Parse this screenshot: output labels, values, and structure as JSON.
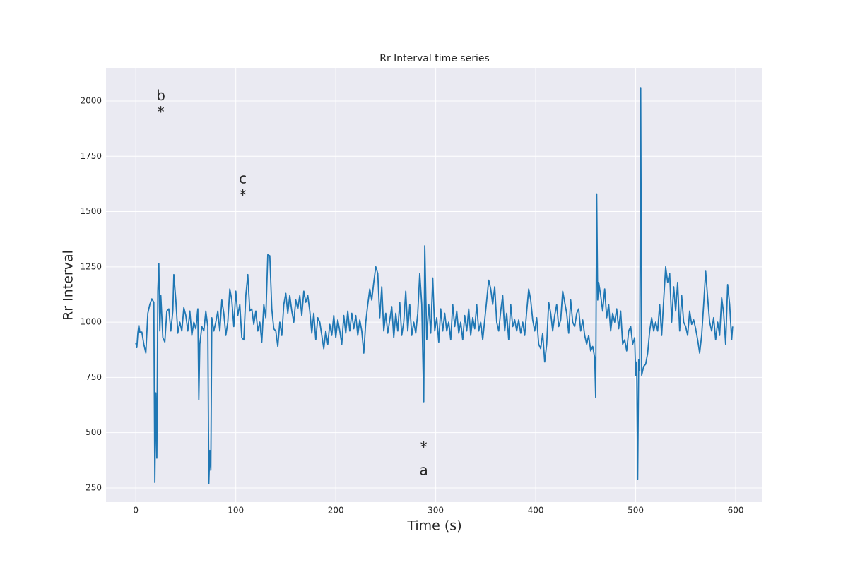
{
  "chart_data": {
    "type": "line",
    "title": "Rr Interval time series",
    "xlabel": "Time (s)",
    "ylabel": "Rr Interval",
    "xlim": [
      -29.85,
      626.85
    ],
    "ylim": [
      186,
      2150
    ],
    "xticks": [
      0,
      100,
      200,
      300,
      400,
      500,
      600
    ],
    "yticks": [
      250,
      500,
      750,
      1000,
      1250,
      1500,
      1750,
      2000
    ],
    "grid": true,
    "background": "#eaeaf2",
    "annotations": [
      {
        "text": "b",
        "x": 25,
        "y": 2040
      },
      {
        "text": "*",
        "x": 25,
        "y": 1965
      },
      {
        "text": "c",
        "x": 107,
        "y": 1665
      },
      {
        "text": "*",
        "x": 107,
        "y": 1590
      },
      {
        "text": "*",
        "x": 288,
        "y": 450
      },
      {
        "text": "a",
        "x": 288,
        "y": 345
      }
    ],
    "series": [
      {
        "color": "#1f77b4",
        "x": [
          0,
          1,
          2,
          3,
          4,
          6,
          8,
          10,
          12,
          14,
          16,
          18,
          19,
          20,
          21,
          22,
          23,
          24,
          25,
          27,
          29,
          31,
          33,
          35,
          37,
          38,
          40,
          42,
          44,
          46,
          48,
          50,
          52,
          54,
          56,
          58,
          60,
          62,
          63,
          64,
          66,
          68,
          70,
          72,
          73,
          74,
          75,
          76,
          78,
          80,
          82,
          84,
          86,
          88,
          90,
          92,
          94,
          96,
          98,
          100,
          102,
          104,
          106,
          108,
          110,
          112,
          114,
          116,
          118,
          120,
          122,
          124,
          126,
          128,
          130,
          132,
          134,
          136,
          138,
          140,
          142,
          144,
          146,
          148,
          150,
          152,
          154,
          156,
          158,
          160,
          162,
          164,
          166,
          168,
          170,
          172,
          174,
          176,
          178,
          180,
          182,
          184,
          186,
          188,
          190,
          192,
          194,
          196,
          198,
          200,
          202,
          204,
          206,
          208,
          210,
          212,
          214,
          216,
          218,
          220,
          222,
          224,
          226,
          228,
          230,
          232,
          234,
          236,
          238,
          240,
          242,
          244,
          246,
          248,
          250,
          252,
          254,
          256,
          258,
          260,
          262,
          264,
          266,
          268,
          270,
          272,
          274,
          276,
          278,
          280,
          282,
          284,
          286,
          288,
          289,
          291,
          293,
          295,
          297,
          299,
          301,
          303,
          305,
          307,
          309,
          311,
          313,
          315,
          317,
          319,
          321,
          323,
          325,
          327,
          329,
          331,
          333,
          335,
          337,
          339,
          341,
          343,
          345,
          347,
          349,
          351,
          353,
          355,
          357,
          359,
          361,
          363,
          365,
          367,
          369,
          371,
          373,
          375,
          377,
          379,
          381,
          383,
          385,
          387,
          389,
          391,
          393,
          395,
          397,
          399,
          401,
          403,
          405,
          407,
          409,
          411,
          413,
          415,
          417,
          419,
          421,
          423,
          425,
          427,
          429,
          431,
          433,
          435,
          437,
          439,
          441,
          443,
          445,
          447,
          449,
          451,
          453,
          455,
          457,
          459,
          460,
          461,
          462,
          463,
          465,
          467,
          469,
          471,
          473,
          475,
          477,
          479,
          481,
          483,
          485,
          487,
          489,
          491,
          493,
          495,
          497,
          499,
          500,
          501,
          502,
          503,
          504,
          505,
          506,
          508,
          510,
          512,
          514,
          516,
          518,
          520,
          522,
          524,
          526,
          528,
          530,
          532,
          534,
          536,
          538,
          540,
          542,
          544,
          546,
          548,
          550,
          552,
          554,
          556,
          558,
          560,
          562,
          564,
          566,
          568,
          570,
          572,
          574,
          576,
          578,
          580,
          582,
          584,
          586,
          588,
          590,
          592,
          594,
          596,
          597
        ],
        "values": [
          905,
          885,
          950,
          985,
          955,
          955,
          900,
          860,
          1040,
          1080,
          1105,
          1090,
          275,
          680,
          385,
          1140,
          1265,
          960,
          1120,
          930,
          910,
          1050,
          1060,
          960,
          1050,
          1215,
          1100,
          950,
          1000,
          960,
          1065,
          1030,
          960,
          1050,
          940,
          1000,
          970,
          1060,
          650,
          900,
          980,
          960,
          1050,
          980,
          270,
          420,
          330,
          1020,
          960,
          1000,
          1050,
          960,
          1100,
          1040,
          940,
          1000,
          1150,
          1100,
          980,
          1140,
          1030,
          1080,
          930,
          920,
          1120,
          1215,
          1050,
          1060,
          990,
          1050,
          960,
          1000,
          910,
          1080,
          1020,
          1305,
          1300,
          1060,
          970,
          960,
          890,
          1000,
          940,
          1080,
          1130,
          1040,
          1120,
          1050,
          1000,
          1100,
          1060,
          1120,
          1030,
          1140,
          1090,
          1120,
          1050,
          950,
          1040,
          920,
          1020,
          1000,
          940,
          880,
          960,
          900,
          990,
          940,
          1030,
          930,
          1010,
          960,
          900,
          1030,
          950,
          1050,
          960,
          1040,
          970,
          1030,
          940,
          1010,
          960,
          860,
          1000,
          1080,
          1150,
          1100,
          1180,
          1250,
          1220,
          1020,
          1160,
          960,
          1040,
          950,
          1010,
          1070,
          930,
          1040,
          960,
          1090,
          940,
          1000,
          1140,
          960,
          1080,
          940,
          1000,
          950,
          1040,
          1220,
          1080,
          640,
          1345,
          920,
          1080,
          950,
          1200,
          960,
          1020,
          910,
          1060,
          960,
          1040,
          960,
          1000,
          920,
          1080,
          980,
          1050,
          950,
          1000,
          920,
          1030,
          960,
          1060,
          940,
          1020,
          970,
          1080,
          960,
          1000,
          920,
          1010,
          1100,
          1190,
          1150,
          1080,
          1160,
          1000,
          960,
          1050,
          1120,
          960,
          1040,
          920,
          1080,
          980,
          1010,
          960,
          1010,
          950,
          1000,
          940,
          1050,
          1150,
          1100,
          1010,
          960,
          1020,
          900,
          880,
          950,
          820,
          900,
          1090,
          1040,
          960,
          1030,
          1080,
          980,
          1010,
          1140,
          1090,
          1040,
          950,
          1100,
          1000,
          980,
          1040,
          1060,
          960,
          1010,
          940,
          900,
          940,
          870,
          890,
          840,
          660,
          1580,
          1100,
          1180,
          1120,
          1050,
          1150,
          1020,
          1080,
          960,
          1040,
          1000,
          1060,
          970,
          1050,
          900,
          920,
          870,
          960,
          980,
          900,
          930,
          760,
          820,
          290,
          830,
          780,
          2060,
          760,
          800,
          810,
          860,
          960,
          1020,
          960,
          1000,
          960,
          1080,
          940,
          1100,
          1250,
          1180,
          1220,
          1000,
          1160,
          1050,
          1180,
          960,
          1120,
          1000,
          980,
          940,
          1050,
          990,
          1010,
          970,
          920,
          860,
          940,
          1080,
          1230,
          1110,
          1000,
          960,
          1020,
          920,
          1000,
          940,
          1110,
          1040,
          900,
          1170,
          1080,
          920,
          980
        ]
      }
    ]
  }
}
